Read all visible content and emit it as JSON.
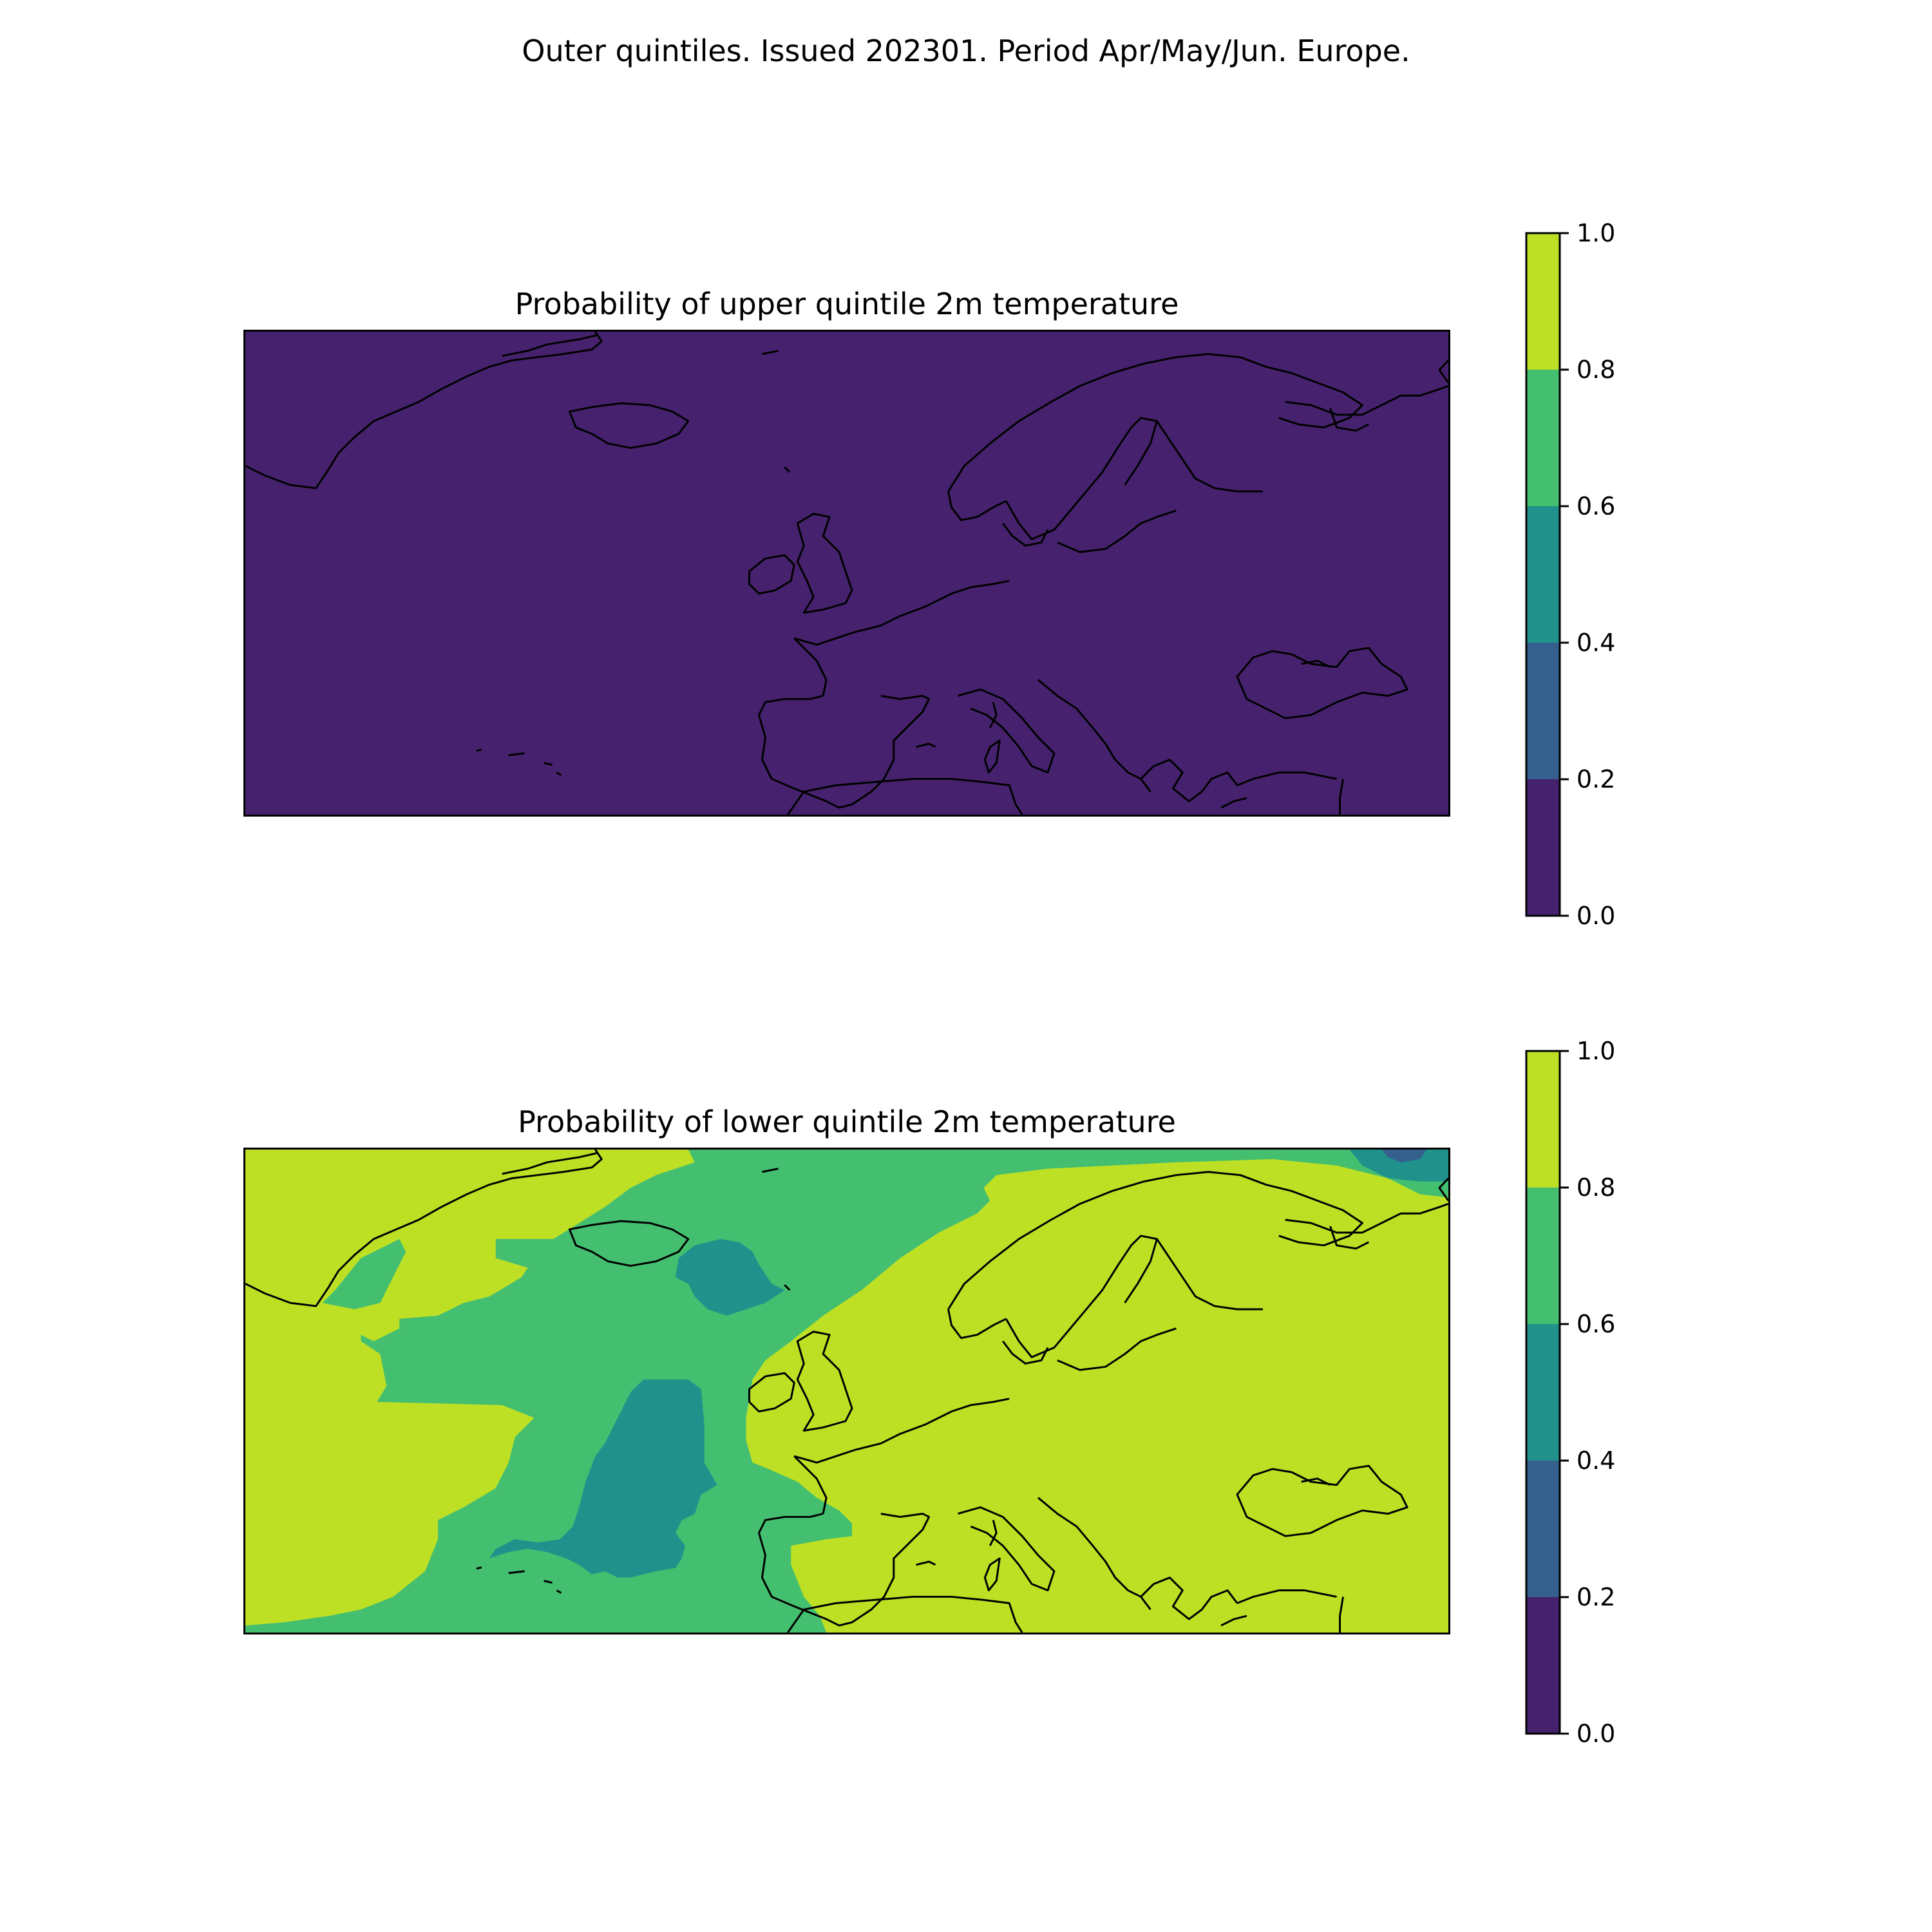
{
  "figure": {
    "suptitle": "Outer quintiles. Issued 202301. Period Apr/May/Jun. Europe."
  },
  "colors": {
    "level_0_0.2": "#46226e",
    "level_0.2_0.4": "#355f8d",
    "level_0.4_0.6": "#21918c",
    "level_0.6_0.8": "#44bf70",
    "level_0.8_1.0": "#bde024",
    "coastline": "#000000"
  },
  "chart_data": [
    {
      "type": "heatmap",
      "title": "Probability of upper quintile 2m temperature",
      "region": "Europe",
      "colorbar": {
        "levels": [
          0.0,
          0.2,
          0.4,
          0.6,
          0.8,
          1.0
        ],
        "tick_labels": [
          "0.0",
          "0.2",
          "0.4",
          "0.6",
          "0.8",
          "1.0"
        ]
      },
      "field_summary": "uniform 0.0–0.2 over entire domain"
    },
    {
      "type": "heatmap",
      "title": "Probability of lower quintile 2m temperature",
      "region": "Europe",
      "colorbar": {
        "levels": [
          0.0,
          0.2,
          0.4,
          0.6,
          0.8,
          1.0
        ],
        "tick_labels": [
          "0.0",
          "0.2",
          "0.4",
          "0.6",
          "0.8",
          "1.0"
        ]
      },
      "field_summary": "0.8–1.0 over continental Europe and western Atlantic; 0.6–0.8 band over central North Atlantic; 0.4–0.6 patches west of Iberia and southeast of Iceland; 0.2–0.4 in far northeast corner"
    }
  ]
}
